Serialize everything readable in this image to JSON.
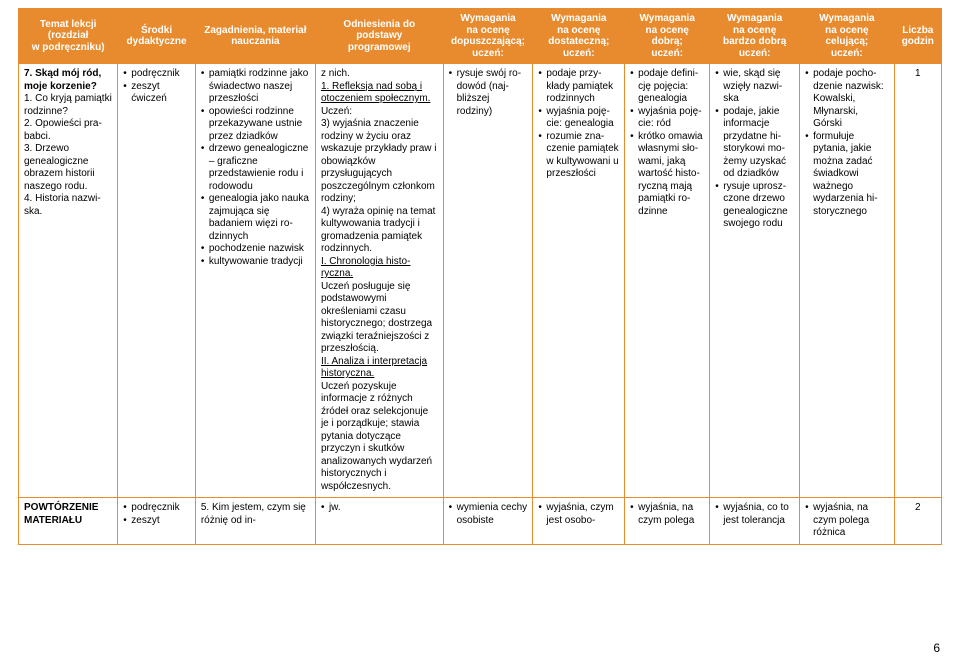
{
  "columns": [
    "Temat lekcji\n(rozdział\nw podręczniku)",
    "Środki\ndydaktyczne",
    "Zagadnienia, materiał\nnauczania",
    "Odniesienia do\npodstawy\nprogramowej",
    "Wymagania\nna ocenę\ndopuszczającą;\nuczeń:",
    "Wymagania\nna ocenę\ndostateczną;\nuczeń:",
    "Wymagania\nna ocenę\ndobrą;\nuczeń:",
    "Wymagania\nna ocenę\nbardzo dobrą\nuczeń:",
    "Wymagania\nna ocenę\ncelującą;\nuczeń:",
    "Liczba\ngodzin"
  ],
  "row1": {
    "lesson_title_bold": "7. Skąd mój ród, moje korzenie?",
    "lesson_points": [
      "1. Co kryją pamiątki rodzinne?",
      "2. Opowieści pra­babci.",
      "3. Drzewo genealogiczne obrazem historii naszego rodu.",
      "4. Historia nazwi­ska."
    ],
    "resources": [
      "podręcznik",
      "zeszyt ćwiczeń"
    ],
    "issues": [
      "pamiątki rodzinne jako świadectwo naszej przeszłości",
      "opowieści rodzinne przekazywane ust­nie przez dziadków",
      "drzewo genealo­giczne – graficzne przedstawienie rodu i rodowodu",
      "genealogia jako na­uka zajmująca się badaniem więzi ro­dzinnych",
      "pochodzenie na­zwisk",
      "kultywowanie trady­cji"
    ],
    "podstawa_z_nich": "z nich.",
    "podstawa_1": "1. Refleksja nad sobą i otoczeniem społecznym.",
    "podstawa_uczen": "Uczeń:",
    "podstawa_3": "3) wyjaśnia znacze­nie rodziny w życiu oraz wskazuje przy­kłady praw i obowiązków przysługujących poszczególnym członkom rodzi­ny;",
    "podstawa_4": "4) wyraża opinię na temat kultywo­wania tradycji i gromadzenia pamiątek rodzin­nych.",
    "podstawa_I": "I. Chronologia histo­ryczna.",
    "podstawa_I_txt": "Uczeń posługuje się podstawowymi określeniami czasu historycznego; do­strzega związki te­raźniejszości z przeszłością.",
    "podstawa_II": "II. Analiza i interpretacja histo­ryczna.",
    "podstawa_II_txt": "Uczeń pozyskuje informacje z różnych źródeł oraz selekcjonuje je i porządkuje; stawia pytania dotyczące przyczyn i skutków analizowanych wy­darzeń historycz­nych i współczesnych.",
    "dop": [
      "rysuje swój ro­dowód (naj­bliższej rodziny)"
    ],
    "dst": [
      "podaje przy­kłady pamiątek rodzinnych",
      "wyjaśnia poję­cie: genealogia",
      "rozumie zna­czenie pamią­tek w kultywowani u przeszłości"
    ],
    "db": [
      "podaje defini­cję pojęcia: genealogia",
      "wyjaśnia poję­cie: ród",
      "krótko omawia własnymi sło­wami, jaką wartość histo­ryczną mają pamiątki ro­dzinne"
    ],
    "bdb": [
      "wie, skąd się wzięły nazwi­ska",
      "podaje, jakie informacje przydatne hi­storykowi mo­żemy uzyskać od dziadków",
      "rysuje uprosz­czone drzewo genealogiczne swojego rodu"
    ],
    "cel": [
      "podaje pocho­dze­nie nazwisk: Ko­walski, Młynarski, Górski",
      "formułuje pytania, jakie można zadać świadkowi ważne­go wydarzenia hi­storycznego"
    ],
    "hours": "1"
  },
  "row2": {
    "lesson_title_bold": "POWTÓRZENIE MATERIAŁU",
    "resources": [
      "podręcznik",
      "zeszyt"
    ],
    "issues_prefix": "5. ",
    "issues_text": "Kim jestem, czym się różnię od in-",
    "podstawa": "jw.",
    "dop": [
      "wymienia ce­chy osobiste"
    ],
    "dst": [
      "wyjaśnia, czym jest osobo-"
    ],
    "db": [
      "wyjaśnia, na czym polega"
    ],
    "bdb": [
      "wyjaśnia, co to jest tolerancja"
    ],
    "cel": [
      "wyjaśnia, na czym polega różnica"
    ],
    "hours": "2"
  },
  "page_number": "6",
  "colors": {
    "header_bg": "#e88b2e",
    "header_text": "#ffffff",
    "border": "#e88b2e"
  }
}
